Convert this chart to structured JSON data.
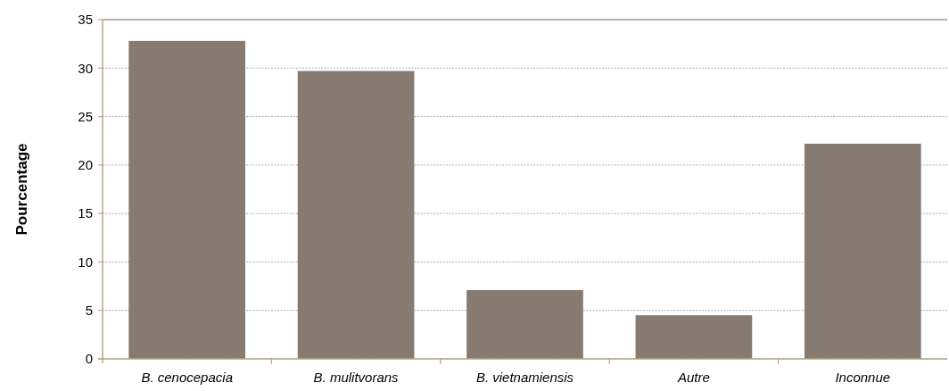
{
  "chart_data": {
    "type": "bar",
    "ylabel": "Pourcentage",
    "categories": [
      "B. cenocepacia",
      "B. mulitvorans",
      "B. vietnamiensis",
      "Autre",
      "Inconnue"
    ],
    "values": [
      32.8,
      29.7,
      7.1,
      4.5,
      22.2
    ],
    "color": "#877a70",
    "ylim": [
      0,
      35
    ],
    "yticks": [
      0,
      5,
      10,
      15,
      20,
      25,
      30,
      35
    ],
    "grid": "y"
  }
}
